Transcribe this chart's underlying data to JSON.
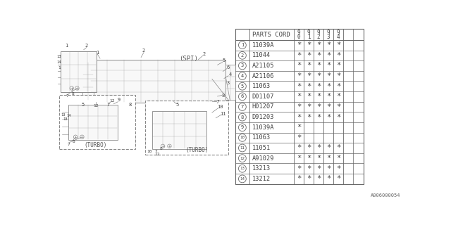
{
  "doc_number": "A006000054",
  "parts": [
    {
      "num": 1,
      "code": "11039A",
      "marks": [
        1,
        1,
        1,
        1,
        1
      ]
    },
    {
      "num": 2,
      "code": "11044",
      "marks": [
        1,
        1,
        1,
        1,
        1
      ]
    },
    {
      "num": 3,
      "code": "A21105",
      "marks": [
        1,
        1,
        1,
        1,
        1
      ]
    },
    {
      "num": 4,
      "code": "A21106",
      "marks": [
        1,
        1,
        1,
        1,
        1
      ]
    },
    {
      "num": 5,
      "code": "11063",
      "marks": [
        1,
        1,
        1,
        1,
        1
      ]
    },
    {
      "num": 6,
      "code": "D01107",
      "marks": [
        1,
        1,
        1,
        1,
        1
      ]
    },
    {
      "num": 7,
      "code": "H01207",
      "marks": [
        1,
        1,
        1,
        1,
        1
      ]
    },
    {
      "num": 8,
      "code": "D91203",
      "marks": [
        1,
        1,
        1,
        1,
        1
      ]
    },
    {
      "num": 9,
      "code": "11039A",
      "marks": [
        1,
        0,
        0,
        0,
        0
      ]
    },
    {
      "num": 10,
      "code": "11063",
      "marks": [
        1,
        0,
        0,
        0,
        0
      ]
    },
    {
      "num": 11,
      "code": "11051",
      "marks": [
        1,
        1,
        1,
        1,
        1
      ]
    },
    {
      "num": 12,
      "code": "A91029",
      "marks": [
        1,
        1,
        1,
        1,
        1
      ]
    },
    {
      "num": 13,
      "code": "13213",
      "marks": [
        1,
        1,
        1,
        1,
        1
      ]
    },
    {
      "num": 14,
      "code": "13212",
      "marks": [
        1,
        1,
        1,
        1,
        1
      ]
    }
  ],
  "year_cols": [
    "9\n0",
    "9\n1",
    "9\n2",
    "9\n3",
    "9\n4"
  ],
  "spi_label": "(SPI)",
  "turbo_label": "(TURBO)",
  "diagram_color": "#888888",
  "text_color": "#444444",
  "table_line_color": "#666666"
}
